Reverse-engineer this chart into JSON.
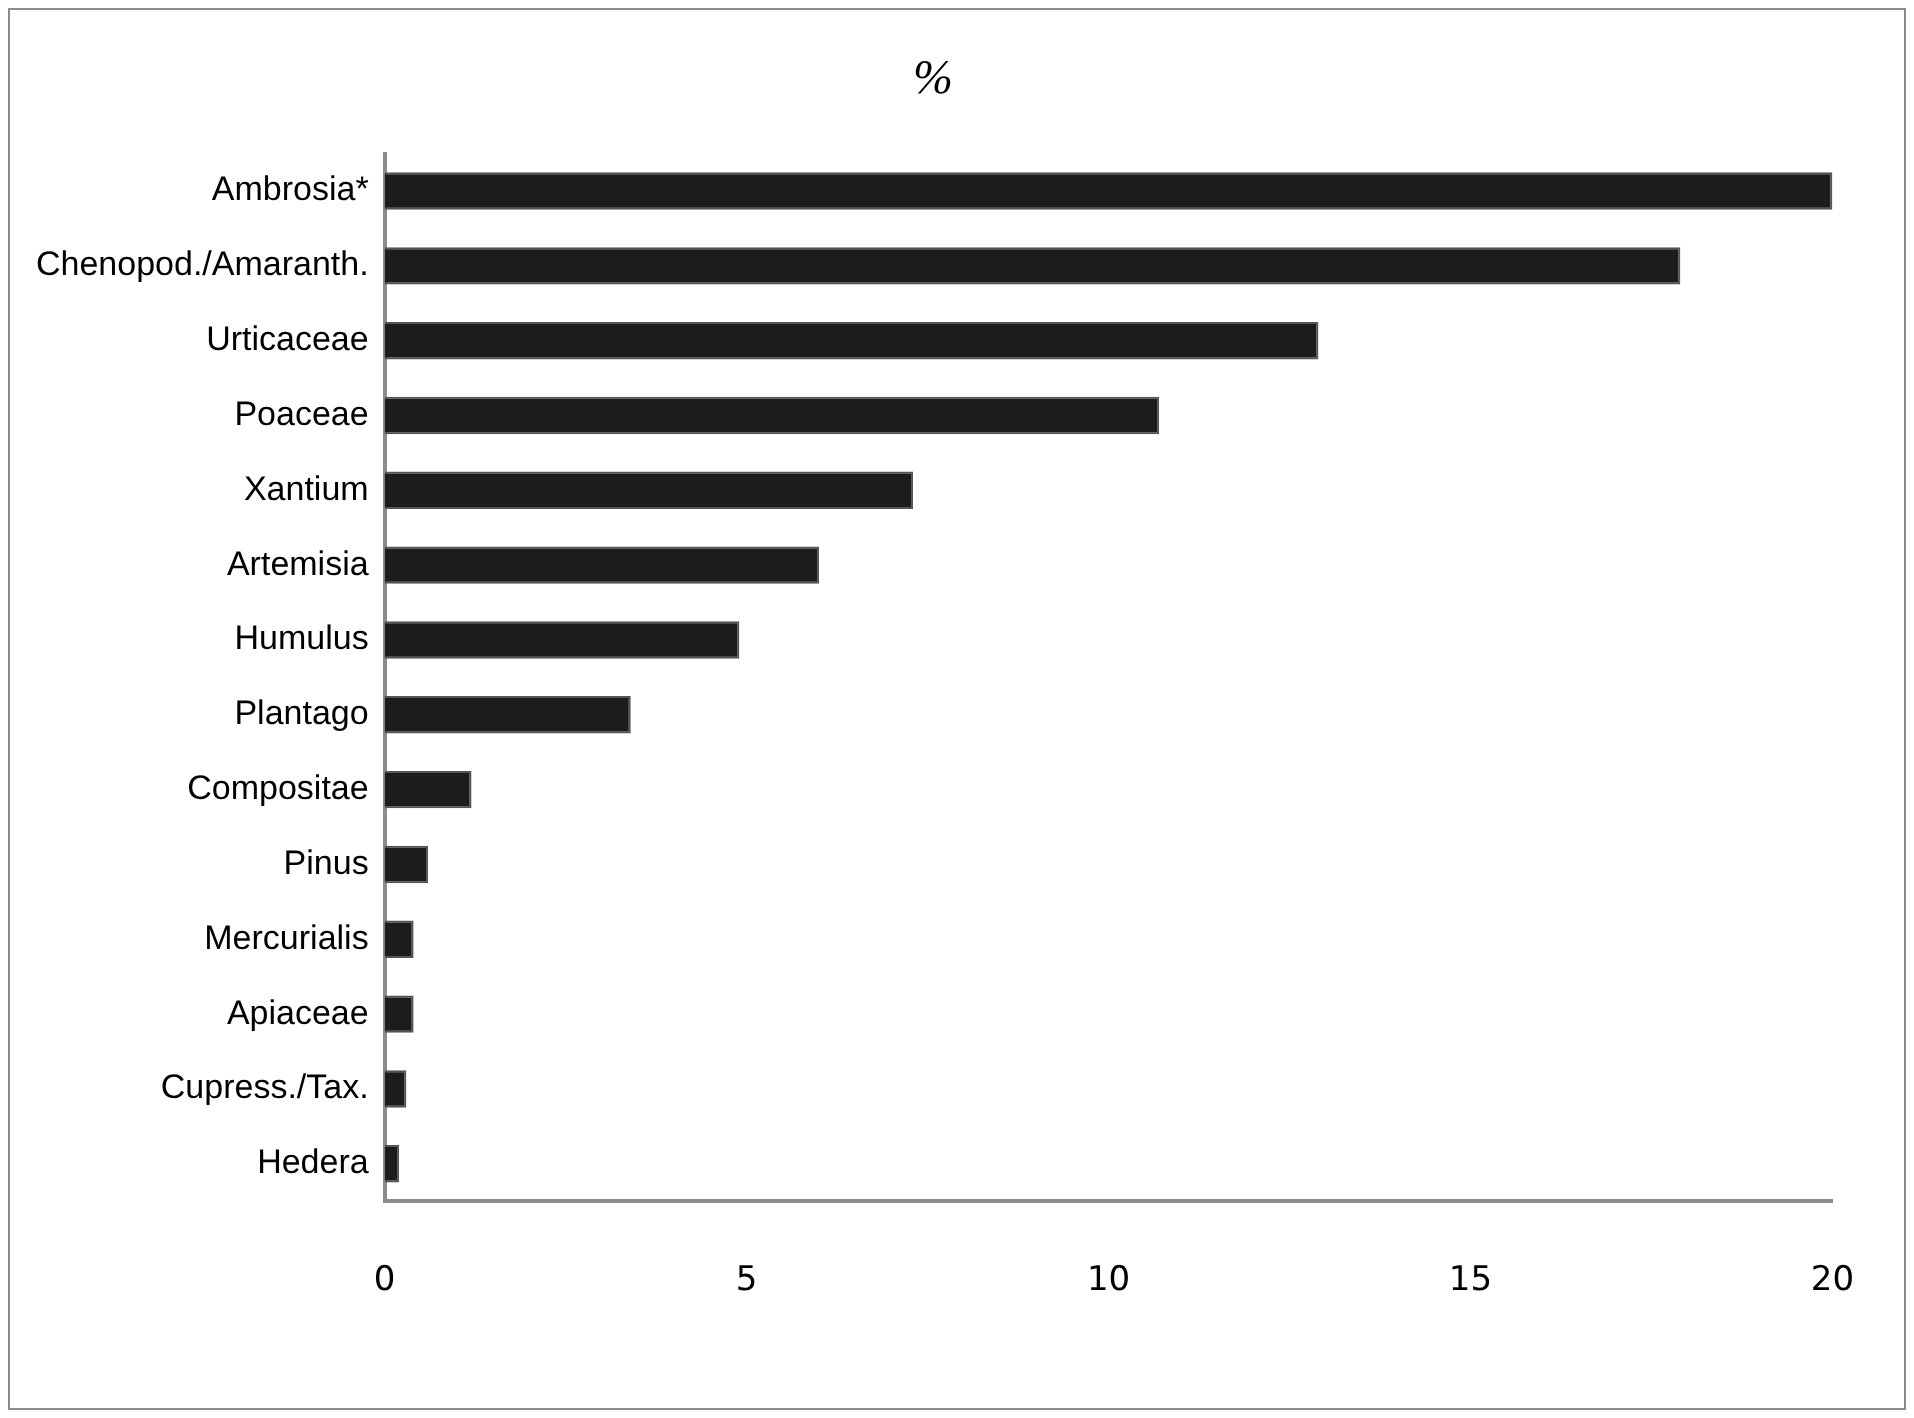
{
  "chart_data": {
    "type": "bar",
    "orientation": "horizontal",
    "title": "%",
    "categories": [
      "Ambrosia*",
      "Chenopod./Amaranth.",
      "Urticaceae",
      "Poaceae",
      "Xantium",
      "Artemisia",
      "Humulus",
      "Plantago",
      "Compositae",
      "Pinus",
      "Mercurialis",
      "Apiaceae",
      "Cupress./Tax.",
      "Hedera"
    ],
    "values": [
      20,
      17.9,
      12.9,
      10.7,
      7.3,
      6,
      4.9,
      3.4,
      1.2,
      0.6,
      0.4,
      0.4,
      0.3,
      0.2
    ],
    "color": "#1c1c1c",
    "xlim": [
      0,
      20
    ],
    "xticks": [
      0,
      5,
      10,
      15,
      20
    ],
    "grid": false,
    "legend": false
  }
}
